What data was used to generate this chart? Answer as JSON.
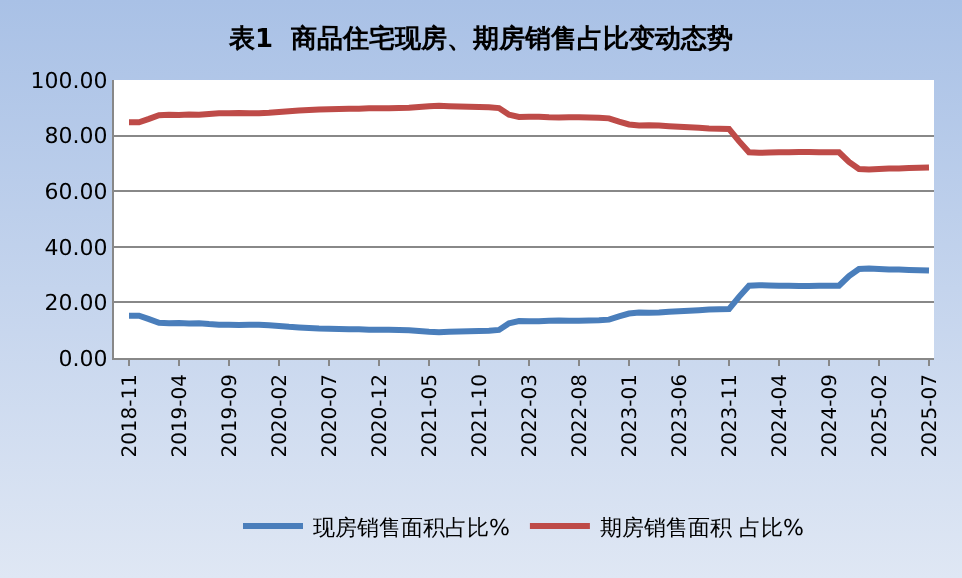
{
  "chart_data": {
    "type": "line",
    "title": "表1  商品住宅现房、期房销售占比变动态势",
    "categories": [
      "2018-11",
      null,
      null,
      null,
      null,
      "2019-04",
      null,
      null,
      null,
      null,
      "2019-09",
      null,
      null,
      null,
      null,
      "2020-02",
      null,
      null,
      null,
      null,
      "2020-07",
      null,
      null,
      null,
      null,
      "2020-12",
      null,
      null,
      null,
      null,
      "2021-05",
      null,
      null,
      null,
      null,
      "2021-10",
      null,
      null,
      null,
      null,
      "2022-03",
      null,
      null,
      null,
      null,
      "2022-08",
      null,
      null,
      null,
      null,
      "2023-01",
      null,
      null,
      null,
      null,
      "2023-06",
      null,
      null,
      null,
      null,
      "2023-11",
      null,
      null,
      null,
      null,
      "2024-04",
      null,
      null,
      null,
      null,
      "2024-09",
      null,
      null,
      null,
      null,
      "2025-02",
      null,
      null,
      null,
      null,
      "2025-07"
    ],
    "series": [
      {
        "name": "现房销售面积占比%",
        "color": "#4a7ebb",
        "values": [
          15.2,
          15.2,
          14.0,
          12.7,
          12.5,
          12.6,
          12.4,
          12.5,
          12.2,
          12.0,
          12.0,
          11.9,
          12.0,
          12.0,
          11.8,
          11.5,
          11.2,
          11.0,
          10.8,
          10.6,
          10.5,
          10.4,
          10.3,
          10.3,
          10.2,
          10.2,
          10.2,
          10.1,
          10.0,
          9.7,
          9.4,
          9.3,
          9.4,
          9.5,
          9.6,
          9.7,
          9.8,
          10.1,
          12.5,
          13.3,
          13.2,
          13.2,
          13.4,
          13.5,
          13.4,
          13.4,
          13.5,
          13.6,
          13.8,
          15.0,
          16.0,
          16.4,
          16.3,
          16.4,
          16.6,
          16.8,
          17.0,
          17.2,
          17.4,
          17.5,
          17.6,
          22.0,
          26.0,
          26.2,
          26.1,
          26.0,
          26.0,
          25.9,
          25.9,
          26.0,
          26.0,
          26.0,
          29.5,
          32.0,
          32.2,
          32.0,
          31.8,
          31.8,
          31.7,
          31.6,
          31.5
        ]
      },
      {
        "name": "期房销售面积 占比%",
        "color": "#be4b48",
        "values": [
          84.8,
          84.8,
          86.0,
          87.3,
          87.5,
          87.4,
          87.6,
          87.5,
          87.8,
          88.0,
          88.0,
          88.1,
          88.0,
          88.0,
          88.2,
          88.5,
          88.8,
          89.0,
          89.2,
          89.4,
          89.5,
          89.6,
          89.7,
          89.7,
          89.8,
          89.8,
          89.8,
          89.9,
          90.0,
          90.3,
          90.6,
          90.7,
          90.6,
          90.5,
          90.4,
          90.3,
          90.2,
          89.9,
          87.5,
          86.7,
          86.8,
          86.8,
          86.6,
          86.5,
          86.6,
          86.6,
          86.5,
          86.4,
          86.2,
          85.0,
          84.0,
          83.6,
          83.7,
          83.6,
          83.4,
          83.2,
          83.0,
          82.8,
          82.6,
          82.5,
          82.4,
          78.0,
          74.0,
          73.8,
          73.9,
          74.0,
          74.0,
          74.1,
          74.1,
          74.0,
          74.0,
          74.0,
          70.5,
          68.0,
          67.8,
          68.0,
          68.2,
          68.2,
          68.3,
          68.4,
          68.5
        ]
      }
    ],
    "ylim": [
      0,
      100
    ],
    "yticks": [
      {
        "value": 0,
        "label": "0.00"
      },
      {
        "value": 20,
        "label": "20.00"
      },
      {
        "value": 40,
        "label": "40.00"
      },
      {
        "value": 60,
        "label": "60.00"
      },
      {
        "value": 80,
        "label": "80.00"
      },
      {
        "value": 100,
        "label": "100.00"
      }
    ],
    "grid": "y",
    "legend": "bottom",
    "marker": "none",
    "line_style": "solid"
  }
}
